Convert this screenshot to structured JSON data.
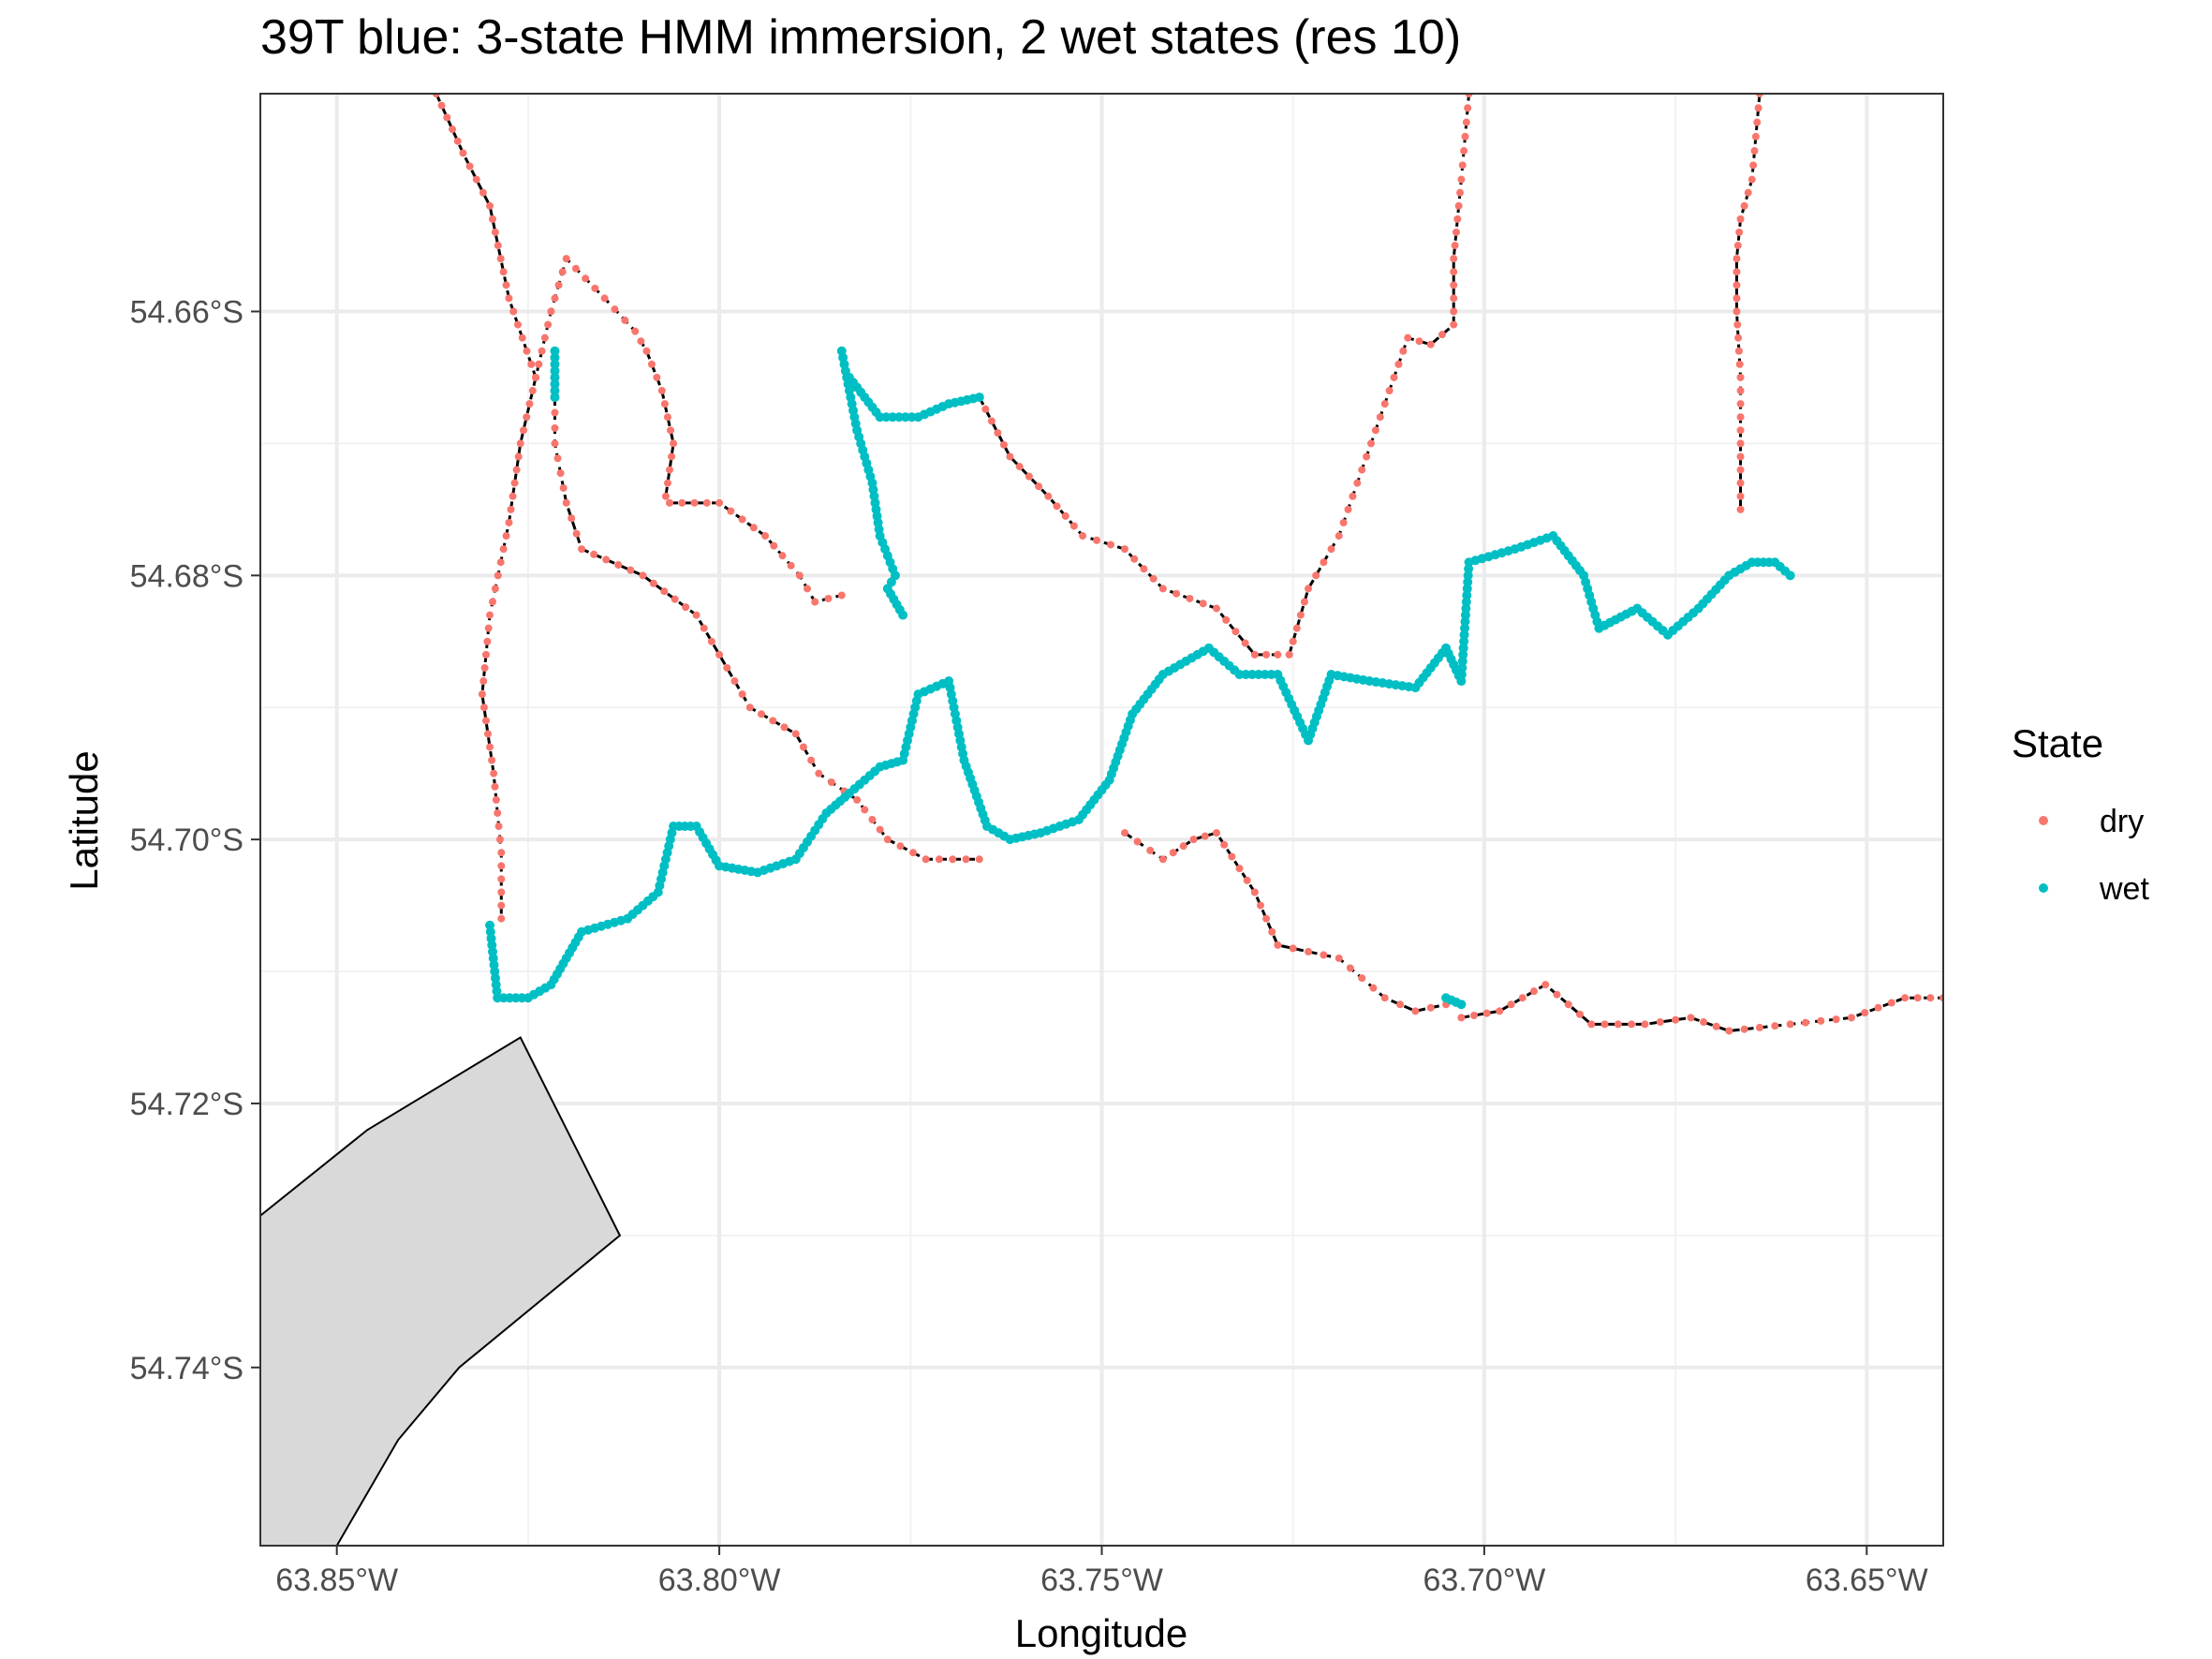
{
  "chart_data": {
    "type": "scatter",
    "title": "39T blue: 3-state HMM immersion, 2 wet states (res 10)",
    "xlabel": "Longitude",
    "ylabel": "Latitude",
    "xlim": [
      -63.86,
      -63.64
    ],
    "ylim": [
      -54.7535,
      -54.6435
    ],
    "x_ticks": [
      -63.85,
      -63.8,
      -63.75,
      -63.7,
      -63.65
    ],
    "x_tick_labels": [
      "63.85°W",
      "63.80°W",
      "63.75°W",
      "63.70°W",
      "63.65°W"
    ],
    "y_ticks": [
      -54.66,
      -54.68,
      -54.7,
      -54.72,
      -54.74
    ],
    "y_tick_labels": [
      "54.66°S",
      "54.68°S",
      "54.70°S",
      "54.72°S",
      "54.74°S"
    ],
    "grid": true,
    "legend": {
      "title": "State",
      "placement": "right",
      "entries": [
        {
          "label": "dry",
          "color": "#F8766D"
        },
        {
          "label": "wet",
          "color": "#00BFC4"
        }
      ]
    },
    "colors": {
      "dry": "#F8766D",
      "wet": "#00BFC4",
      "track": "#000000",
      "land_fill": "#D9D9D9"
    },
    "land_polygon": [
      [
        -63.86,
        -54.7285
      ],
      [
        -63.846,
        -54.722
      ],
      [
        -63.826,
        -54.715
      ],
      [
        -63.813,
        -54.73
      ],
      [
        -63.834,
        -54.74
      ],
      [
        -63.842,
        -54.7455
      ],
      [
        -63.85,
        -54.7535
      ],
      [
        -63.86,
        -54.7535
      ]
    ],
    "series": [
      {
        "name": "dry",
        "segments": [
          [
            [
              -63.837,
              -54.6435
            ],
            [
              -63.8335,
              -54.648
            ],
            [
              -63.83,
              -54.652
            ],
            [
              -63.8275,
              -54.659
            ],
            [
              -63.824,
              -54.665
            ],
            [
              -63.822,
              -54.66
            ],
            [
              -63.82,
              -54.656
            ],
            [
              -63.815,
              -54.659
            ],
            [
              -63.811,
              -54.6615
            ],
            [
              -63.8095,
              -54.663
            ],
            [
              -63.8075,
              -54.666
            ],
            [
              -63.806,
              -54.67
            ],
            [
              -63.807,
              -54.674
            ]
          ],
          [
            [
              -63.8215,
              -54.6665
            ],
            [
              -63.8215,
              -54.67
            ],
            [
              -63.82,
              -54.6745
            ],
            [
              -63.818,
              -54.678
            ],
            [
              -63.81,
              -54.68
            ],
            [
              -63.803,
              -54.683
            ],
            [
              -63.799,
              -54.687
            ],
            [
              -63.796,
              -54.69
            ],
            [
              -63.79,
              -54.692
            ],
            [
              -63.787,
              -54.695
            ],
            [
              -63.782,
              -54.697
            ],
            [
              -63.778,
              -54.7
            ],
            [
              -63.773,
              -54.7015
            ],
            [
              -63.766,
              -54.7015
            ]
          ],
          [
            [
              -63.8065,
              -54.6745
            ],
            [
              -63.8,
              -54.6745
            ],
            [
              -63.794,
              -54.677
            ],
            [
              -63.7895,
              -54.68
            ],
            [
              -63.7875,
              -54.682
            ],
            [
              -63.784,
              -54.6815
            ]
          ],
          [
            [
              -63.766,
              -54.6665
            ],
            [
              -63.762,
              -54.671
            ],
            [
              -63.757,
              -54.674
            ],
            [
              -63.7525,
              -54.677
            ],
            [
              -63.747,
              -54.678
            ],
            [
              -63.742,
              -54.681
            ],
            [
              -63.735,
              -54.6825
            ],
            [
              -63.73,
              -54.686
            ],
            [
              -63.727,
              -54.686
            ]
          ],
          [
            [
              -63.7255,
              -54.686
            ],
            [
              -63.723,
              -54.681
            ],
            [
              -63.719,
              -54.677
            ],
            [
              -63.716,
              -54.672
            ],
            [
              -63.713,
              -54.667
            ],
            [
              -63.71,
              -54.662
            ],
            [
              -63.707,
              -54.6625
            ],
            [
              -63.704,
              -54.661
            ],
            [
              -63.704,
              -54.656
            ],
            [
              -63.703,
              -54.65
            ],
            [
              -63.702,
              -54.6435
            ]
          ],
          [
            [
              -63.747,
              -54.6995
            ],
            [
              -63.742,
              -54.7015
            ],
            [
              -63.738,
              -54.7
            ],
            [
              -63.735,
              -54.6995
            ],
            [
              -63.73,
              -54.704
            ],
            [
              -63.727,
              -54.708
            ],
            [
              -63.719,
              -54.709
            ],
            [
              -63.713,
              -54.712
            ],
            [
              -63.709,
              -54.713
            ],
            [
              -63.705,
              -54.7125
            ]
          ],
          [
            [
              -63.703,
              -54.7135
            ],
            [
              -63.698,
              -54.713
            ],
            [
              -63.692,
              -54.711
            ],
            [
              -63.686,
              -54.714
            ],
            [
              -63.679,
              -54.714
            ],
            [
              -63.673,
              -54.7135
            ],
            [
              -63.668,
              -54.7145
            ],
            [
              -63.66,
              -54.714
            ],
            [
              -63.652,
              -54.7135
            ],
            [
              -63.645,
              -54.712
            ],
            [
              -63.64,
              -54.712
            ]
          ],
          [
            [
              -63.664,
              -54.6435
            ],
            [
              -63.665,
              -54.65
            ],
            [
              -63.6665,
              -54.653
            ],
            [
              -63.667,
              -54.656
            ],
            [
              -63.667,
              -54.66
            ],
            [
              -63.6665,
              -54.665
            ],
            [
              -63.6665,
              -54.67
            ],
            [
              -63.6665,
              -54.675
            ]
          ],
          [
            [
              -63.824,
              -54.665
            ],
            [
              -63.826,
              -54.67
            ],
            [
              -63.8275,
              -54.676
            ],
            [
              -63.83,
              -54.683
            ],
            [
              -63.831,
              -54.689
            ],
            [
              -63.8295,
              -54.695
            ],
            [
              -63.8285,
              -54.701
            ],
            [
              -63.8285,
              -54.706
            ]
          ]
        ]
      },
      {
        "name": "wet",
        "segments": [
          [
            [
              -63.83,
              -54.7065
            ],
            [
              -63.829,
              -54.712
            ],
            [
              -63.825,
              -54.712
            ],
            [
              -63.822,
              -54.711
            ],
            [
              -63.82,
              -54.709
            ],
            [
              -63.818,
              -54.707
            ],
            [
              -63.812,
              -54.706
            ],
            [
              -63.808,
              -54.704
            ],
            [
              -63.806,
              -54.699
            ],
            [
              -63.803,
              -54.699
            ],
            [
              -63.8,
              -54.702
            ],
            [
              -63.795,
              -54.7025
            ],
            [
              -63.79,
              -54.7015
            ],
            [
              -63.786,
              -54.698
            ],
            [
              -63.783,
              -54.6965
            ],
            [
              -63.779,
              -54.6945
            ],
            [
              -63.776,
              -54.694
            ],
            [
              -63.774,
              -54.689
            ],
            [
              -63.77,
              -54.688
            ],
            [
              -63.768,
              -54.694
            ],
            [
              -63.765,
              -54.699
            ],
            [
              -63.762,
              -54.7
            ],
            [
              -63.758,
              -54.6995
            ],
            [
              -63.753,
              -54.6985
            ],
            [
              -63.749,
              -54.6955
            ],
            [
              -63.746,
              -54.6905
            ],
            [
              -63.742,
              -54.6875
            ],
            [
              -63.736,
              -54.6855
            ],
            [
              -63.732,
              -54.6875
            ],
            [
              -63.727,
              -54.6875
            ],
            [
              -63.723,
              -54.6925
            ],
            [
              -63.72,
              -54.6875
            ],
            [
              -63.715,
              -54.688
            ],
            [
              -63.709,
              -54.6885
            ],
            [
              -63.705,
              -54.6855
            ],
            [
              -63.703,
              -54.688
            ],
            [
              -63.702,
              -54.679
            ],
            [
              -63.696,
              -54.678
            ],
            [
              -63.691,
              -54.677
            ],
            [
              -63.687,
              -54.68
            ],
            [
              -63.685,
              -54.684
            ],
            [
              -63.68,
              -54.6825
            ],
            [
              -63.676,
              -54.6845
            ],
            [
              -63.672,
              -54.6825
            ],
            [
              -63.668,
              -54.68
            ],
            [
              -63.665,
              -54.679
            ],
            [
              -63.662,
              -54.679
            ],
            [
              -63.66,
              -54.68
            ]
          ],
          [
            [
              -63.784,
              -54.663
            ],
            [
              -63.782,
              -54.669
            ],
            [
              -63.78,
              -54.673
            ],
            [
              -63.779,
              -54.677
            ],
            [
              -63.777,
              -54.68
            ],
            [
              -63.778,
              -54.681
            ],
            [
              -63.776,
              -54.683
            ]
          ],
          [
            [
              -63.783,
              -54.665
            ],
            [
              -63.779,
              -54.668
            ],
            [
              -63.774,
              -54.668
            ],
            [
              -63.77,
              -54.667
            ],
            [
              -63.766,
              -54.6665
            ]
          ],
          [
            [
              -63.8215,
              -54.663
            ],
            [
              -63.8215,
              -54.6665
            ]
          ],
          [
            [
              -63.705,
              -54.712
            ],
            [
              -63.703,
              -54.7125
            ]
          ]
        ]
      }
    ]
  }
}
